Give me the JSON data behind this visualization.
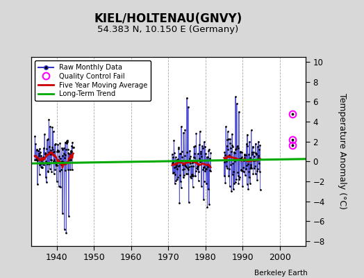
{
  "title": "KIEL/HOLTENAU(GNVY)",
  "subtitle": "54.383 N, 10.150 E (Germany)",
  "ylabel": "Temperature Anomaly (°C)",
  "attribution": "Berkeley Earth",
  "ylim": [
    -8.5,
    10.5
  ],
  "xlim": [
    1933,
    2007
  ],
  "xticks": [
    1940,
    1950,
    1960,
    1970,
    1980,
    1990,
    2000
  ],
  "yticks": [
    -8,
    -6,
    -4,
    -2,
    0,
    2,
    4,
    6,
    8,
    10
  ],
  "fig_bg": "#d8d8d8",
  "plot_bg": "#ffffff",
  "raw_color": "#3333cc",
  "moving_avg_color": "#cc0000",
  "trend_color": "#00aa00",
  "qc_fail_color": "#ff00ff",
  "marker_color": "#000000",
  "trend_x": [
    1933,
    2007
  ],
  "trend_y": [
    -0.2,
    0.25
  ],
  "qc_fail_points": [
    [
      2003.5,
      4.8
    ],
    [
      2003.5,
      2.2
    ],
    [
      2003.5,
      1.6
    ]
  ],
  "seed": 99
}
